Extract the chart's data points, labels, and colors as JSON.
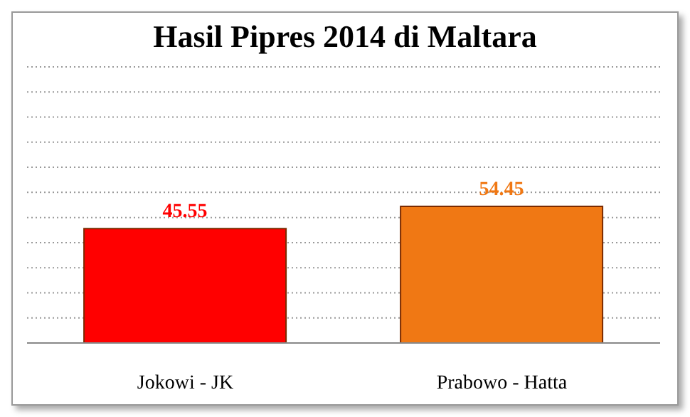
{
  "chart_data": {
    "type": "bar",
    "title": "Hasil Pipres 2014 di Maltara",
    "categories": [
      "Jokowi - JK",
      "Prabowo - Hatta"
    ],
    "values": [
      45.55,
      54.45
    ],
    "colors": [
      "#ff0000",
      "#f07814"
    ],
    "ylim": [
      0,
      110
    ],
    "tick_labels": "x",
    "grid": "y",
    "data_labels": true
  }
}
